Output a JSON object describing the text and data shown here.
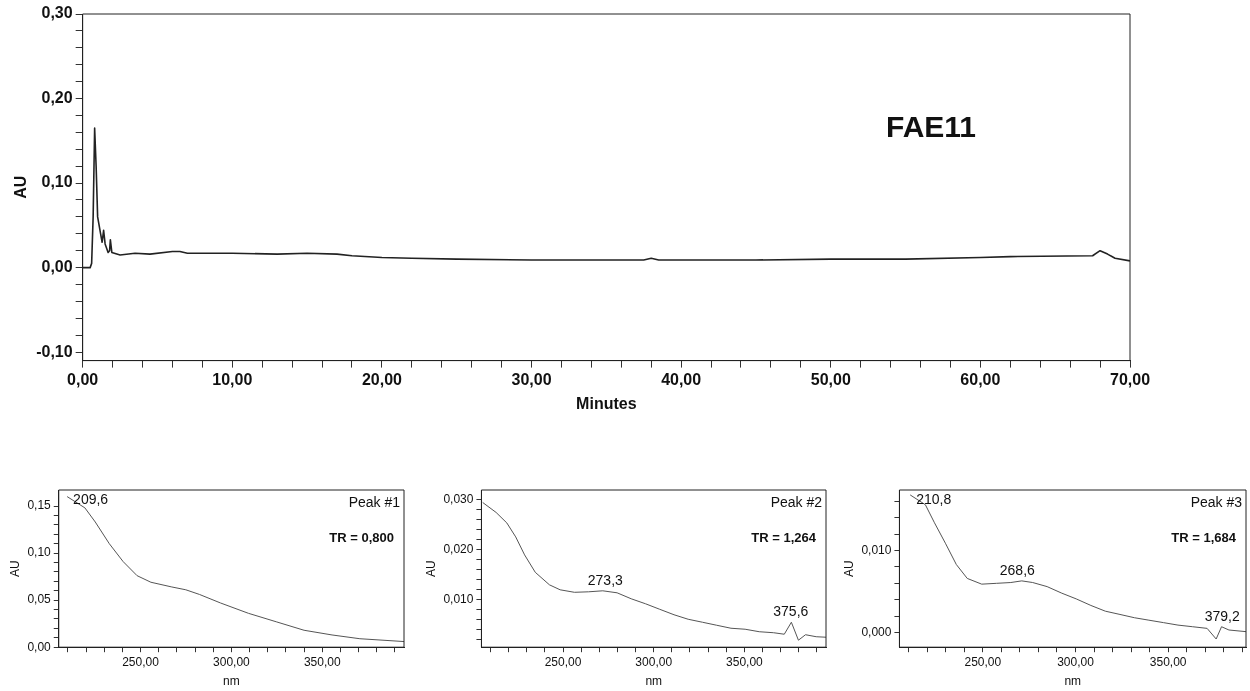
{
  "chart_data": [
    {
      "type": "line",
      "xlabel": "Minutes",
      "ylabel": "AU",
      "xlim": [
        0,
        70
      ],
      "ylim": [
        -0.11,
        0.3
      ],
      "grid": false,
      "legend": false,
      "marker": "none",
      "xticks": [
        {
          "value": 0,
          "label": "0,00"
        },
        {
          "value": 2,
          "label": null
        },
        {
          "value": 4,
          "label": null
        },
        {
          "value": 6,
          "label": null
        },
        {
          "value": 8,
          "label": null
        },
        {
          "value": 10,
          "label": "10,00"
        },
        {
          "value": 12,
          "label": null
        },
        {
          "value": 14,
          "label": null
        },
        {
          "value": 16,
          "label": null
        },
        {
          "value": 18,
          "label": null
        },
        {
          "value": 20,
          "label": "20,00"
        },
        {
          "value": 22,
          "label": null
        },
        {
          "value": 24,
          "label": null
        },
        {
          "value": 26,
          "label": null
        },
        {
          "value": 28,
          "label": null
        },
        {
          "value": 30,
          "label": "30,00"
        },
        {
          "value": 32,
          "label": null
        },
        {
          "value": 34,
          "label": null
        },
        {
          "value": 36,
          "label": null
        },
        {
          "value": 38,
          "label": null
        },
        {
          "value": 40,
          "label": "40,00"
        },
        {
          "value": 42,
          "label": null
        },
        {
          "value": 44,
          "label": null
        },
        {
          "value": 46,
          "label": null
        },
        {
          "value": 48,
          "label": null
        },
        {
          "value": 50,
          "label": "50,00"
        },
        {
          "value": 52,
          "label": null
        },
        {
          "value": 54,
          "label": null
        },
        {
          "value": 56,
          "label": null
        },
        {
          "value": 58,
          "label": null
        },
        {
          "value": 60,
          "label": "60,00"
        },
        {
          "value": 62,
          "label": null
        },
        {
          "value": 64,
          "label": null
        },
        {
          "value": 66,
          "label": null
        },
        {
          "value": 68,
          "label": null
        },
        {
          "value": 70,
          "label": "70,00"
        }
      ],
      "yticks": [
        {
          "value": -0.1,
          "label": "-0,10"
        },
        {
          "value": -0.08,
          "label": null
        },
        {
          "value": -0.06,
          "label": null
        },
        {
          "value": -0.04,
          "label": null
        },
        {
          "value": -0.02,
          "label": null
        },
        {
          "value": 0,
          "label": "0,00"
        },
        {
          "value": 0.02,
          "label": null
        },
        {
          "value": 0.04,
          "label": null
        },
        {
          "value": 0.06,
          "label": null
        },
        {
          "value": 0.08,
          "label": null
        },
        {
          "value": 0.1,
          "label": "0,10"
        },
        {
          "value": 0.12,
          "label": null
        },
        {
          "value": 0.14,
          "label": null
        },
        {
          "value": 0.16,
          "label": null
        },
        {
          "value": 0.18,
          "label": null
        },
        {
          "value": 0.2,
          "label": "0,20"
        },
        {
          "value": 0.22,
          "label": null
        },
        {
          "value": 0.24,
          "label": null
        },
        {
          "value": 0.26,
          "label": null
        },
        {
          "value": 0.28,
          "label": null
        },
        {
          "value": 0.3,
          "label": "0,30"
        }
      ],
      "annotations": [
        "FAE11"
      ],
      "series": [
        {
          "color": "#222222",
          "x": [
            0,
            0.5,
            0.6,
            0.7,
            0.8,
            0.9,
            1.0,
            1.2,
            1.3,
            1.4,
            1.5,
            1.7,
            1.8,
            1.85,
            1.95,
            2.5,
            3.5,
            4.5,
            6,
            6.5,
            7,
            10,
            13,
            15,
            17,
            18,
            20,
            22,
            25,
            30,
            35,
            37.5,
            38,
            38.5,
            40,
            45,
            50,
            55,
            60,
            62,
            67.5,
            68,
            68.5,
            69,
            70
          ],
          "values": [
            0,
            0,
            0.005,
            0.06,
            0.165,
            0.12,
            0.06,
            0.04,
            0.03,
            0.044,
            0.028,
            0.018,
            0.02,
            0.033,
            0.018,
            0.015,
            0.017,
            0.016,
            0.019,
            0.019,
            0.017,
            0.017,
            0.016,
            0.017,
            0.016,
            0.014,
            0.012,
            0.011,
            0.01,
            0.009,
            0.009,
            0.009,
            0.011,
            0.009,
            0.009,
            0.009,
            0.01,
            0.01,
            0.012,
            0.013,
            0.014,
            0.02,
            0.016,
            0.011,
            0.008
          ]
        }
      ]
    },
    {
      "type": "line",
      "xlabel": "nm",
      "ylabel": "AU",
      "xlim": [
        205,
        395
      ],
      "ylim": [
        0,
        0.167
      ],
      "grid": false,
      "legend": false,
      "marker": "none",
      "xticks": [
        {
          "value": 210,
          "label": null
        },
        {
          "value": 220,
          "label": null
        },
        {
          "value": 230,
          "label": null
        },
        {
          "value": 240,
          "label": null
        },
        {
          "value": 250,
          "label": "250,00"
        },
        {
          "value": 260,
          "label": null
        },
        {
          "value": 270,
          "label": null
        },
        {
          "value": 280,
          "label": null
        },
        {
          "value": 290,
          "label": null
        },
        {
          "value": 300,
          "label": "300,00"
        },
        {
          "value": 310,
          "label": null
        },
        {
          "value": 320,
          "label": null
        },
        {
          "value": 330,
          "label": null
        },
        {
          "value": 340,
          "label": null
        },
        {
          "value": 350,
          "label": "350,00"
        },
        {
          "value": 360,
          "label": null
        },
        {
          "value": 370,
          "label": null
        },
        {
          "value": 380,
          "label": null
        },
        {
          "value": 390,
          "label": null
        }
      ],
      "yticks": [
        {
          "value": 0,
          "label": "0,00"
        },
        {
          "value": 0.01,
          "label": null
        },
        {
          "value": 0.02,
          "label": null
        },
        {
          "value": 0.03,
          "label": null
        },
        {
          "value": 0.04,
          "label": null
        },
        {
          "value": 0.05,
          "label": "0,05"
        },
        {
          "value": 0.06,
          "label": null
        },
        {
          "value": 0.07,
          "label": null
        },
        {
          "value": 0.08,
          "label": null
        },
        {
          "value": 0.09,
          "label": null
        },
        {
          "value": 0.1,
          "label": "0,10"
        },
        {
          "value": 0.11,
          "label": null
        },
        {
          "value": 0.12,
          "label": null
        },
        {
          "value": 0.13,
          "label": null
        },
        {
          "value": 0.14,
          "label": null
        },
        {
          "value": 0.15,
          "label": "0,15"
        }
      ],
      "annotations": [
        "Peak #1",
        "TR = 0,800",
        {
          "text": "209,6",
          "x": 209.6,
          "y": 0.16
        }
      ],
      "series": [
        {
          "color": "#555555",
          "x": [
            209.6,
            219.4,
            225.1,
            232.8,
            240.4,
            248.1,
            255.7,
            267.2,
            274.9,
            282.5,
            294,
            309.4,
            324.7,
            340,
            355.4,
            370.7,
            395
          ],
          "values": [
            0.16,
            0.148,
            0.133,
            0.11,
            0.091,
            0.076,
            0.069,
            0.064,
            0.061,
            0.056,
            0.047,
            0.036,
            0.027,
            0.018,
            0.013,
            0.009,
            0.006
          ]
        }
      ]
    },
    {
      "type": "line",
      "xlabel": "nm",
      "ylabel": "AU",
      "xlim": [
        205,
        395
      ],
      "ylim": [
        0.0005,
        0.032
      ],
      "grid": false,
      "legend": false,
      "marker": "none",
      "xticks": [
        {
          "value": 210,
          "label": null
        },
        {
          "value": 220,
          "label": null
        },
        {
          "value": 230,
          "label": null
        },
        {
          "value": 240,
          "label": null
        },
        {
          "value": 250,
          "label": "250,00"
        },
        {
          "value": 260,
          "label": null
        },
        {
          "value": 270,
          "label": null
        },
        {
          "value": 280,
          "label": null
        },
        {
          "value": 290,
          "label": null
        },
        {
          "value": 300,
          "label": "300,00"
        },
        {
          "value": 310,
          "label": null
        },
        {
          "value": 320,
          "label": null
        },
        {
          "value": 330,
          "label": null
        },
        {
          "value": 340,
          "label": null
        },
        {
          "value": 350,
          "label": "350,00"
        },
        {
          "value": 360,
          "label": null
        },
        {
          "value": 370,
          "label": null
        },
        {
          "value": 380,
          "label": null
        },
        {
          "value": 390,
          "label": null
        }
      ],
      "yticks": [
        {
          "value": 0.002,
          "label": null
        },
        {
          "value": 0.004,
          "label": null
        },
        {
          "value": 0.006,
          "label": null
        },
        {
          "value": 0.008,
          "label": null
        },
        {
          "value": 0.01,
          "label": "0,010"
        },
        {
          "value": 0.012,
          "label": null
        },
        {
          "value": 0.014,
          "label": null
        },
        {
          "value": 0.016,
          "label": null
        },
        {
          "value": 0.018,
          "label": null
        },
        {
          "value": 0.02,
          "label": "0,020"
        },
        {
          "value": 0.022,
          "label": null
        },
        {
          "value": 0.024,
          "label": null
        },
        {
          "value": 0.026,
          "label": null
        },
        {
          "value": 0.028,
          "label": null
        },
        {
          "value": 0.03,
          "label": "0,030"
        }
      ],
      "annotations": [
        "Peak #2",
        "TR = 1,264",
        {
          "text": "273,3",
          "x": 273.3,
          "y": 0.0118
        },
        {
          "text": "375,6",
          "x": 375.6,
          "y": 0.0055
        }
      ],
      "series": [
        {
          "color": "#555555",
          "x": [
            205.7,
            213.1,
            219,
            223.9,
            228.8,
            234.7,
            242.5,
            248.4,
            256.3,
            264.1,
            271.9,
            279.8,
            287.6,
            295.5,
            303.3,
            311.2,
            319,
            326.9,
            334.7,
            342.6,
            350.4,
            358.2,
            366.1,
            372,
            375.9,
            379.8,
            383.7,
            389.6,
            395
          ],
          "values": [
            0.0295,
            0.0275,
            0.0254,
            0.0226,
            0.019,
            0.0155,
            0.013,
            0.012,
            0.0115,
            0.0116,
            0.0118,
            0.0114,
            0.0102,
            0.0092,
            0.0081,
            0.007,
            0.0061,
            0.0055,
            0.0049,
            0.0043,
            0.0041,
            0.0036,
            0.0034,
            0.0031,
            0.0055,
            0.0019,
            0.003,
            0.0026,
            0.0025
          ]
        }
      ]
    },
    {
      "type": "line",
      "xlabel": "nm",
      "ylabel": "AU",
      "xlim": [
        205,
        392
      ],
      "ylim": [
        -0.0018,
        0.0174
      ],
      "grid": false,
      "legend": false,
      "marker": "none",
      "xticks": [
        {
          "value": 210,
          "label": null
        },
        {
          "value": 220,
          "label": null
        },
        {
          "value": 230,
          "label": null
        },
        {
          "value": 240,
          "label": null
        },
        {
          "value": 250,
          "label": "250,00"
        },
        {
          "value": 260,
          "label": null
        },
        {
          "value": 270,
          "label": null
        },
        {
          "value": 280,
          "label": null
        },
        {
          "value": 290,
          "label": null
        },
        {
          "value": 300,
          "label": "300,00"
        },
        {
          "value": 310,
          "label": null
        },
        {
          "value": 320,
          "label": null
        },
        {
          "value": 330,
          "label": null
        },
        {
          "value": 340,
          "label": null
        },
        {
          "value": 350,
          "label": "350,00"
        },
        {
          "value": 360,
          "label": null
        },
        {
          "value": 370,
          "label": null
        },
        {
          "value": 380,
          "label": null
        },
        {
          "value": 390,
          "label": null
        }
      ],
      "yticks": [
        {
          "value": 0,
          "label": "0,000"
        },
        {
          "value": 0.002,
          "label": null
        },
        {
          "value": 0.004,
          "label": null
        },
        {
          "value": 0.006,
          "label": null
        },
        {
          "value": 0.008,
          "label": null
        },
        {
          "value": 0.01,
          "label": "0,010"
        },
        {
          "value": 0.012,
          "label": null
        },
        {
          "value": 0.014,
          "label": null
        },
        {
          "value": 0.016,
          "label": null
        }
      ],
      "annotations": [
        "Peak #3",
        "TR = 1,684",
        {
          "text": "210,8",
          "x": 210.8,
          "y": 0.0168
        },
        {
          "text": "268,6",
          "x": 268.6,
          "y": 0.0063
        },
        {
          "text": "379,2",
          "x": 379.2,
          "y": 0.0007
        }
      ],
      "series": [
        {
          "color": "#555555",
          "x": [
            210.8,
            219,
            223.9,
            229.8,
            235.7,
            241.6,
            249.4,
            257.3,
            265.1,
            271,
            276.9,
            284.7,
            292.6,
            300.4,
            308.3,
            316.1,
            324,
            331.8,
            339.6,
            347.5,
            355.3,
            363.2,
            371,
            375.9,
            378.8,
            382.8,
            392
          ],
          "values": [
            0.0168,
            0.0156,
            0.0134,
            0.0109,
            0.0083,
            0.0066,
            0.0059,
            0.006,
            0.0061,
            0.0063,
            0.0061,
            0.0056,
            0.0048,
            0.0041,
            0.0033,
            0.0026,
            0.0022,
            0.0018,
            0.0015,
            0.0012,
            0.0009,
            0.0007,
            0.0005,
            -0.0008,
            0.0007,
            0.0003,
            0.0001
          ]
        }
      ]
    }
  ]
}
